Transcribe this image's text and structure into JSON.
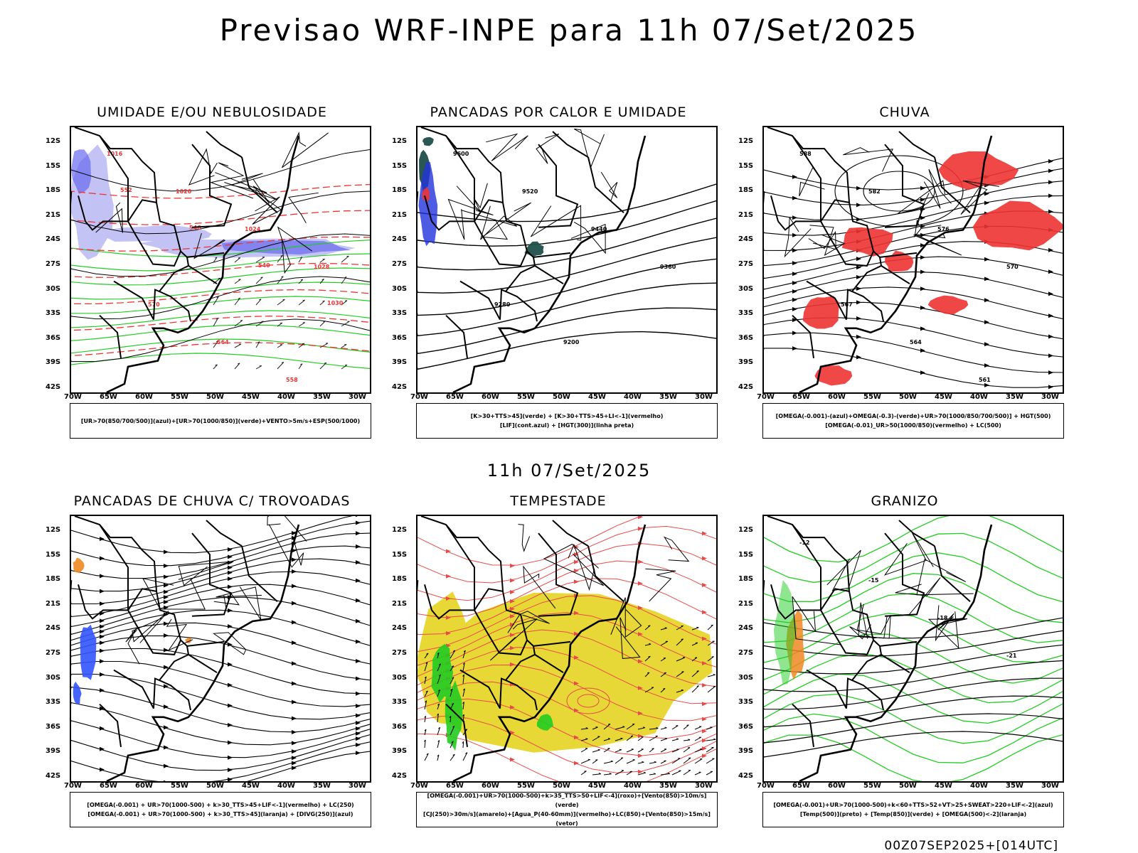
{
  "header": {
    "title": "Previsao WRF-INPE  para 11h 07/Set/2025"
  },
  "middle": {
    "time": "11h 07/Set/2025"
  },
  "footer": {
    "run": "00Z07SEP2025+[014UTC]"
  },
  "axes": {
    "lat_labels": [
      "12S",
      "15S",
      "18S",
      "21S",
      "24S",
      "27S",
      "30S",
      "33S",
      "36S",
      "39S",
      "42S"
    ],
    "lon_labels": [
      "70W",
      "65W",
      "60W",
      "55W",
      "50W",
      "45W",
      "40W",
      "35W",
      "30W"
    ]
  },
  "colors": {
    "blue": "#6a6af0",
    "green": "#22cc22",
    "red": "#ee3333",
    "yellow": "#e6d62c",
    "teal": "#1f4f4a",
    "orange": "#ee8822"
  },
  "panels": [
    {
      "title": "UMIDADE E/OU NEBULOSIDADE",
      "legend": [
        "[UR>70(850/700/500)](azul)+[UR>70(1000/850)](verde)+VENTO>5m/s+ESP(500/1000)"
      ],
      "labels": [
        "1016",
        "1020",
        "1024",
        "1028",
        "570",
        "564",
        "558",
        "552",
        "546",
        "540",
        "1030"
      ]
    },
    {
      "title": "PANCADAS POR CALOR E UMIDADE",
      "legend": [
        "[K>30+TTS>45](verde) + [K>30+TTS>45+LI<-1](vermelho)",
        "[LIF](cont.azul) + [HGT(300)](linha preta)"
      ],
      "labels": [
        "9600",
        "9520",
        "9440",
        "9360",
        "9280",
        "9200"
      ]
    },
    {
      "title": "CHUVA",
      "legend": [
        "[OMEGA(-0.001)-(azul)+OMEGA(-0.3)-(verde)+UR>70(1000/850/700/500)] + HGT(500)",
        "[OMEGA(-0.01)_UR>50(1000/850)(vermelho) + LC(500)"
      ],
      "labels": [
        "588",
        "582",
        "576",
        "570",
        "567",
        "564",
        "561"
      ]
    },
    {
      "title": "PANCADAS DE CHUVA C/ TROVOADAS",
      "legend": [
        "[OMEGA(-0.001) + UR>70(1000-500) + k>30_TTS>45+LIF<-1](vermelho) + LC(250)",
        "[OMEGA(-0.001) + UR>70(1000-500) + k>30_TTS>45](laranja) + [DIVG(250)](azul)"
      ],
      "labels": []
    },
    {
      "title": "TEMPESTADE",
      "legend": [
        "[OMEGA(-0.001)+UR>70(1000-500)+k>35_TTS>50+LIF<-4](roxo)+[Vento(850)>10m/s](verde)",
        "[CJ(250)>30m/s](amarelo)+[Agua_P(40-60mm)](vermelho)+LC(850)+[Vento(850)>15m/s](vetor)"
      ],
      "labels": []
    },
    {
      "title": "GRANIZO",
      "legend": [
        "[OMEGA(-0.001)+UR>70(1000-500)+k<60+TTS>52+VT>25+SWEAT>220+LIF<-2](azul)",
        "[Temp(500)](preto) + [Temp(850)](verde) + [OMEGA(500)<-2](laranja)"
      ],
      "labels": [
        "-12",
        "-15",
        "-18",
        "-21"
      ]
    }
  ]
}
